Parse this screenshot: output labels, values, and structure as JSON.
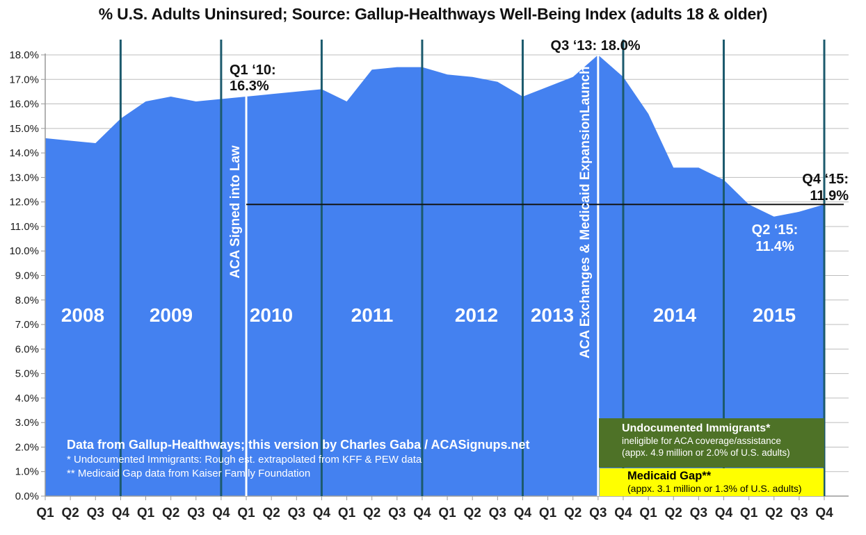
{
  "title": "% U.S. Adults Uninsured; Source: Gallup-Healthways Well-Being Index (adults 18 & older)",
  "chart_data": {
    "type": "area",
    "title": "% U.S. Adults Uninsured; Source: Gallup-Healthways Well-Being Index (adults 18 & older)",
    "ylim": [
      0,
      18
    ],
    "ytick_step": 1,
    "grid": "horizontal",
    "years": [
      "2008",
      "2009",
      "2010",
      "2011",
      "2012",
      "2013",
      "2014",
      "2015"
    ],
    "series": [
      {
        "year": "2008",
        "values": [
          14.6,
          14.5,
          14.4,
          15.4
        ]
      },
      {
        "year": "2009",
        "values": [
          16.1,
          16.3,
          16.1,
          16.2
        ]
      },
      {
        "year": "2010",
        "values": [
          16.3,
          16.4,
          16.5,
          16.6
        ]
      },
      {
        "year": "2011",
        "values": [
          16.1,
          17.4,
          17.5,
          17.5
        ]
      },
      {
        "year": "2012",
        "values": [
          17.2,
          17.1,
          16.9,
          16.3
        ]
      },
      {
        "year": "2013",
        "values": [
          16.7,
          17.1,
          18.0,
          17.1
        ]
      },
      {
        "year": "2014",
        "values": [
          15.6,
          13.4,
          13.4,
          12.9
        ]
      },
      {
        "year": "2015",
        "values": [
          11.9,
          11.4,
          11.6,
          11.9
        ]
      }
    ],
    "x_labels": [
      "Q1",
      "Q2",
      "Q3",
      "Q4",
      "Q1",
      "Q2",
      "Q3",
      "Q4",
      "Q1",
      "Q2",
      "Q3",
      "Q4",
      "Q1",
      "Q2",
      "Q3",
      "Q4",
      "Q1",
      "Q2",
      "Q3",
      "Q4",
      "Q1",
      "Q2",
      "Q3",
      "Q4",
      "Q1",
      "Q2",
      "Q3",
      "Q4",
      "Q1",
      "Q2",
      "Q3",
      "Q4"
    ],
    "y_tick_labels": [
      "0.0%",
      "1.0%",
      "2.0%",
      "3.0%",
      "4.0%",
      "5.0%",
      "6.0%",
      "7.0%",
      "8.0%",
      "9.0%",
      "10.0%",
      "11.0%",
      "12.0%",
      "13.0%",
      "14.0%",
      "15.0%",
      "16.0%",
      "17.0%",
      "18.0%"
    ],
    "year_line_indices": [
      3,
      7,
      11,
      15,
      19,
      23,
      27,
      31
    ],
    "reference_line_value": 11.9
  },
  "event_lines": [
    {
      "label": "ACA Signed into Law",
      "quarter_index": 8
    },
    {
      "label": "ACA Exchanges & Medicaid ExpansionLaunch",
      "quarter_index": 22
    }
  ],
  "annotations": {
    "q1_2010": {
      "line1": "Q1 ‘10:",
      "line2": "16.3%"
    },
    "q3_2013": {
      "text": "Q3 ‘13: 18.0%"
    },
    "q2_2015": {
      "line1": "Q2 ‘15:",
      "line2": "11.4%"
    },
    "q4_2015": {
      "line1": "Q4 ‘15:",
      "line2": "11.9%"
    }
  },
  "boxes": {
    "undocumented": {
      "line1": "Undocumented Immigrants*",
      "line2": "ineligible for ACA coverage/assistance",
      "line3": "(appx.  4.9 million or 2.0% of U.S. adults)",
      "color": "#4e7227"
    },
    "medicaid": {
      "line1": "Medicaid Gap**",
      "line2": "(appx. 3.1 million or 1.3% of U.S. adults)",
      "color": "#ffff00"
    }
  },
  "credit": {
    "line1": "Data from Gallup-Healthways; this version by Charles Gaba / ACASignups.net",
    "line2": "* Undocumented Immigrants: Rough est. extrapolated from KFF & PEW data",
    "line3": "** Medicaid Gap data from Kaiser Family Foundation"
  },
  "colors": {
    "area": "#4481f0",
    "year_line": "#1c5a6d",
    "event_line": "#ffffff",
    "reference_line": "#141414",
    "gridline": "#bdbdbd",
    "axis": "#999999",
    "text": "#1a1a1a"
  }
}
